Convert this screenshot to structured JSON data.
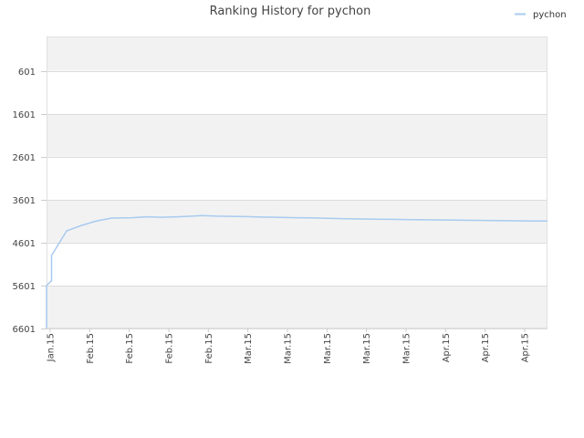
{
  "chart_data": {
    "type": "line",
    "title": "Ranking History for pychon",
    "xlabel": "",
    "ylabel": "",
    "y_inverted": true,
    "ylim": [
      -200,
      6601
    ],
    "y_ticks": [
      601,
      1601,
      2601,
      3601,
      4601,
      5601,
      6601
    ],
    "x_tick_labels": [
      "Jan.15",
      "Feb.15",
      "Feb.15",
      "Feb.15",
      "Feb.15",
      "Mar.15",
      "Mar.15",
      "Mar.15",
      "Mar.15",
      "Mar.15",
      "Apr.15",
      "Apr.15",
      "Apr.15"
    ],
    "legend_position": "top-right",
    "grid": true,
    "series": [
      {
        "name": "pychon",
        "color": "#a8cbef",
        "points": [
          [
            0.0,
            6601
          ],
          [
            0.0,
            5600
          ],
          [
            0.01,
            5490
          ],
          [
            0.01,
            4900
          ],
          [
            0.04,
            4330
          ],
          [
            0.07,
            4200
          ],
          [
            0.1,
            4095
          ],
          [
            0.13,
            4030
          ],
          [
            0.17,
            4020
          ],
          [
            0.2,
            4000
          ],
          [
            0.23,
            4010
          ],
          [
            0.26,
            4000
          ],
          [
            0.29,
            3985
          ],
          [
            0.31,
            3970
          ],
          [
            0.34,
            3985
          ],
          [
            0.37,
            3990
          ],
          [
            0.4,
            3995
          ],
          [
            0.43,
            4005
          ],
          [
            0.47,
            4015
          ],
          [
            0.5,
            4020
          ],
          [
            0.53,
            4025
          ],
          [
            0.56,
            4035
          ],
          [
            0.6,
            4045
          ],
          [
            0.63,
            4050
          ],
          [
            0.66,
            4055
          ],
          [
            0.69,
            4060
          ],
          [
            0.73,
            4065
          ],
          [
            0.76,
            4070
          ],
          [
            0.8,
            4075
          ],
          [
            0.84,
            4080
          ],
          [
            0.88,
            4085
          ],
          [
            0.92,
            4090
          ],
          [
            0.96,
            4095
          ],
          [
            1.0,
            4100
          ]
        ]
      }
    ]
  }
}
